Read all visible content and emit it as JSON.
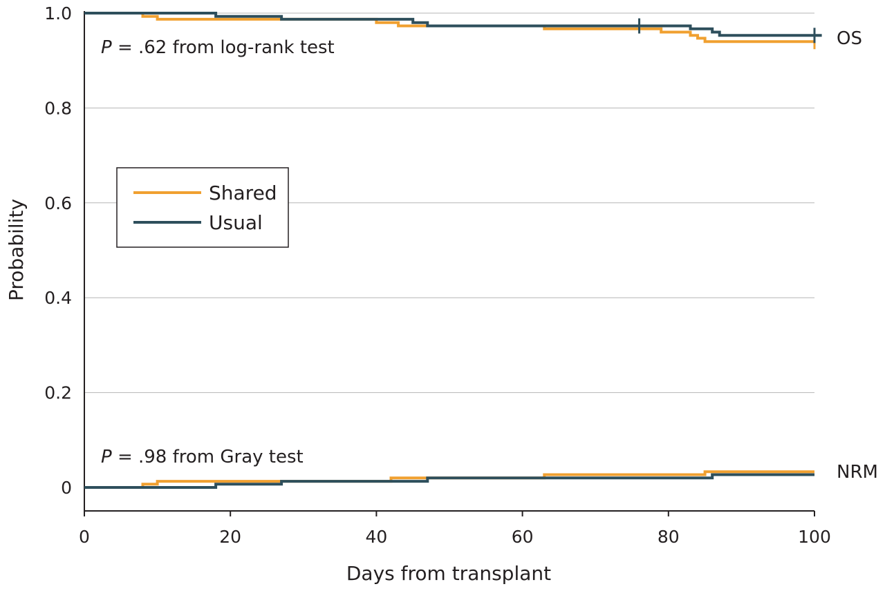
{
  "chart_data": {
    "type": "line",
    "step": true,
    "xlabel": "Days from transplant",
    "ylabel": "Probability",
    "xlim": [
      0,
      100
    ],
    "ylim": [
      -0.05,
      1.0
    ],
    "xticks": [
      0,
      20,
      40,
      60,
      80,
      100
    ],
    "xtick_labels": [
      "0",
      "20",
      "40",
      "60",
      "80",
      "100"
    ],
    "yticks": [
      0,
      0.2,
      0.4,
      0.6,
      0.8,
      1.0
    ],
    "ytick_labels": [
      "0",
      "0.2",
      "0.4",
      "0.6",
      "0.8",
      "1.0"
    ],
    "grid": "horizontal",
    "legend_position": "left",
    "legend": [
      {
        "label": "Shared",
        "color": "#f0a030"
      },
      {
        "label": "Usual",
        "color": "#2e4f5c"
      }
    ],
    "annotations": {
      "os_test": {
        "p": "P",
        "rest": " = .62 from log-rank test"
      },
      "nrm_test": {
        "p": "P",
        "rest": " = .98 from Gray test"
      },
      "os_label": "OS",
      "nrm_label": "NRM"
    },
    "series": [
      {
        "name": "Shared",
        "group": "OS",
        "color": "#f0a030",
        "x": [
          0,
          8,
          10,
          40,
          43,
          63,
          79,
          83,
          84,
          85,
          100
        ],
        "y": [
          1.0,
          0.993,
          0.987,
          0.98,
          0.973,
          0.967,
          0.96,
          0.953,
          0.947,
          0.94,
          0.94
        ],
        "censor_x": [
          100
        ],
        "censor_y": [
          0.94
        ]
      },
      {
        "name": "Usual",
        "group": "OS",
        "color": "#2e4f5c",
        "x": [
          0,
          18,
          27,
          45,
          47,
          83,
          86,
          87,
          101
        ],
        "y": [
          1.0,
          0.993,
          0.987,
          0.98,
          0.973,
          0.967,
          0.96,
          0.953,
          0.953
        ],
        "censor_x": [
          76,
          100
        ],
        "censor_y": [
          0.973,
          0.953
        ]
      },
      {
        "name": "Shared",
        "group": "NRM",
        "color": "#f0a030",
        "x": [
          0,
          8,
          10,
          42,
          63,
          85,
          100
        ],
        "y": [
          0.0,
          0.007,
          0.013,
          0.02,
          0.027,
          0.033,
          0.033
        ],
        "censor_x": [],
        "censor_y": []
      },
      {
        "name": "Usual",
        "group": "NRM",
        "color": "#2e4f5c",
        "x": [
          0,
          18,
          27,
          47,
          86,
          100
        ],
        "y": [
          0.0,
          0.007,
          0.013,
          0.02,
          0.027,
          0.027
        ],
        "censor_x": [],
        "censor_y": []
      }
    ]
  }
}
